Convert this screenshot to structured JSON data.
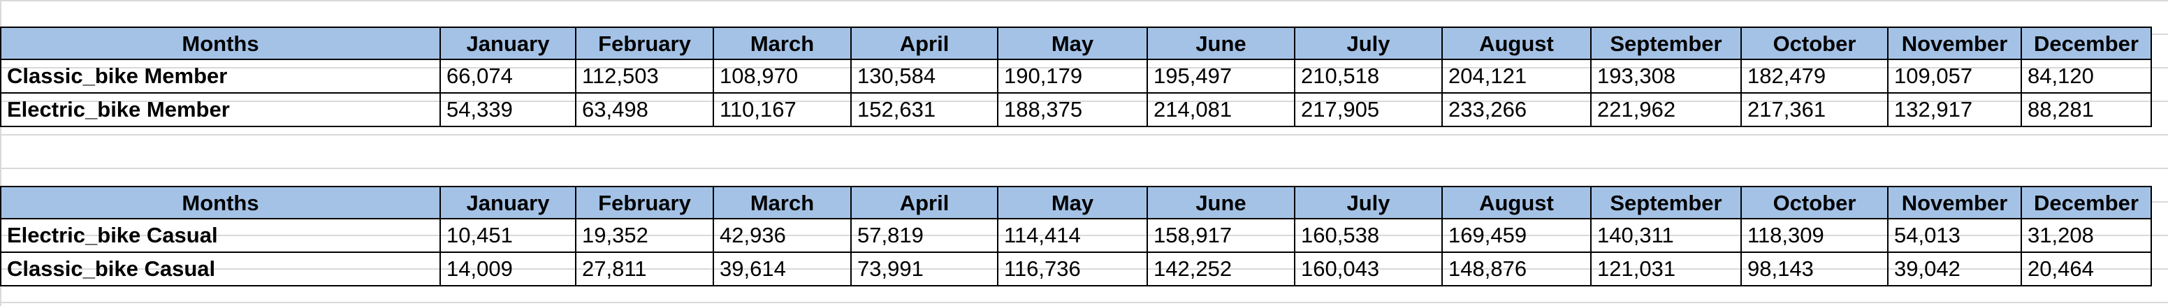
{
  "table1": {
    "headers": [
      "Months",
      "January",
      "February",
      "March",
      "April",
      "May",
      "June",
      "July",
      "August",
      "September",
      "October",
      "November",
      "December"
    ],
    "rows": [
      [
        "Classic_bike Member",
        "66,074",
        "112,503",
        "108,970",
        "130,584",
        "190,179",
        "195,497",
        "210,518",
        "204,121",
        "193,308",
        "182,479",
        "109,057",
        "84,120"
      ],
      [
        "Electric_bike Member",
        "54,339",
        "63,498",
        "110,167",
        "152,631",
        "188,375",
        "214,081",
        "217,905",
        "233,266",
        "221,962",
        "217,361",
        "132,917",
        "88,281"
      ]
    ]
  },
  "table2": {
    "headers": [
      "Months",
      "January",
      "February",
      "March",
      "April",
      "May",
      "June",
      "July",
      "August",
      "September",
      "October",
      "November",
      "December"
    ],
    "rows": [
      [
        "Electric_bike Casual",
        "10,451",
        "19,352",
        "42,936",
        "57,819",
        "114,414",
        "158,917",
        "160,538",
        "169,459",
        "140,311",
        "118,309",
        "54,013",
        "31,208"
      ],
      [
        "Classic_bike Casual",
        "14,009",
        "27,811",
        "39,614",
        "73,991",
        "116,736",
        "142,252",
        "160,043",
        "148,876",
        "121,031",
        "98,143",
        "39,042",
        "20,464"
      ]
    ]
  },
  "colors": {
    "header_fill": "#a4c2e6",
    "gridline": "#d9d9d9",
    "border": "#000000"
  }
}
